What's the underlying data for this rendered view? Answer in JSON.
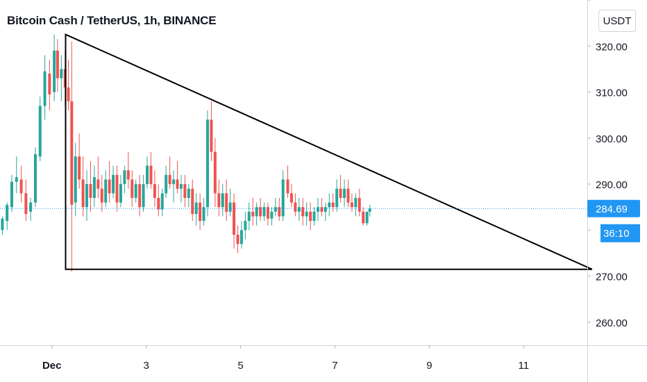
{
  "header": {
    "title": "Bitcoin Cash / TetherUS, 1h, BINANCE",
    "unit_button": "USDT"
  },
  "price_badge": {
    "price": "284.69",
    "countdown": "36:10"
  },
  "colors": {
    "up": "#26a69a",
    "down": "#ef5350",
    "badge": "#2196f3",
    "price_line": "#2196f3",
    "drawing": "#000000"
  },
  "chart_data": {
    "type": "candlestick",
    "title": "Bitcoin Cash / TetherUS, 1h, BINANCE",
    "y_ticks": [
      260,
      270,
      280,
      290,
      300,
      310,
      320,
      330
    ],
    "y_tick_labels": [
      "260.00",
      "270.00",
      "",
      "290.00",
      "300.00",
      "310.00",
      "320.00",
      ""
    ],
    "ylim": [
      255,
      330
    ],
    "x_ticks": [
      {
        "day": 1,
        "label": "Dec",
        "bold": true
      },
      {
        "day": 3,
        "label": "3"
      },
      {
        "day": 5,
        "label": "5"
      },
      {
        "day": 7,
        "label": "7"
      },
      {
        "day": 9,
        "label": "9"
      },
      {
        "day": 11,
        "label": "11"
      }
    ],
    "xlim": [
      -0.1,
      12.35
    ],
    "last_price": 284.69,
    "triangle": [
      {
        "day": 1.29,
        "price": 322.5
      },
      {
        "day": 12.45,
        "price": 271.5
      },
      {
        "day": 1.29,
        "price": 271.5
      }
    ],
    "candles": [
      [
        -0.05,
        280,
        283,
        279,
        282.5
      ],
      [
        0.05,
        282,
        286,
        280,
        285.5
      ],
      [
        0.15,
        285,
        292,
        284,
        290.5
      ],
      [
        0.25,
        290.5,
        296,
        288,
        291.5
      ],
      [
        0.35,
        291,
        294,
        286,
        288
      ],
      [
        0.45,
        288,
        291,
        282,
        283.5
      ],
      [
        0.55,
        284,
        287,
        282,
        286
      ],
      [
        0.65,
        286,
        298,
        285,
        296.5
      ],
      [
        0.75,
        296,
        309,
        295,
        307
      ],
      [
        0.85,
        307,
        318,
        304,
        314.5
      ],
      [
        0.95,
        314,
        317,
        306,
        309.5
      ],
      [
        1.05,
        310,
        322.5,
        308,
        319
      ],
      [
        1.12,
        319,
        321.5,
        310,
        313
      ],
      [
        1.2,
        313,
        318,
        308,
        315
      ],
      [
        1.28,
        315,
        319,
        307,
        311
      ],
      [
        1.35,
        311,
        317,
        306,
        308
      ],
      [
        1.42,
        308,
        321,
        271,
        285.5
      ],
      [
        1.5,
        286,
        299,
        283,
        296
      ],
      [
        1.58,
        296,
        301,
        289,
        291
      ],
      [
        1.66,
        291,
        296,
        283,
        285
      ],
      [
        1.74,
        285,
        293,
        282,
        290
      ],
      [
        1.82,
        290,
        295,
        284,
        287
      ],
      [
        1.9,
        287,
        294,
        285,
        291.5
      ],
      [
        1.98,
        291,
        296,
        287,
        289
      ],
      [
        2.06,
        289,
        292,
        284,
        286
      ],
      [
        2.14,
        286,
        293,
        285,
        291
      ],
      [
        2.22,
        291,
        295,
        286,
        288
      ],
      [
        2.3,
        288,
        294,
        287,
        292
      ],
      [
        2.38,
        292,
        294,
        284,
        286
      ],
      [
        2.46,
        286,
        292,
        285,
        290
      ],
      [
        2.54,
        290,
        294,
        288,
        293
      ],
      [
        2.62,
        293,
        297,
        289,
        291
      ],
      [
        2.7,
        291,
        293,
        285,
        287
      ],
      [
        2.78,
        287,
        291,
        286,
        290
      ],
      [
        2.86,
        290,
        292,
        283,
        285
      ],
      [
        2.94,
        285,
        292,
        284,
        290
      ],
      [
        3.02,
        290,
        296,
        289,
        294
      ],
      [
        3.1,
        294,
        297,
        289,
        290
      ],
      [
        3.18,
        290,
        293,
        285,
        287
      ],
      [
        3.26,
        287,
        290,
        283,
        284.5
      ],
      [
        3.34,
        284.5,
        289,
        283,
        288
      ],
      [
        3.42,
        288,
        294,
        287,
        292
      ],
      [
        3.5,
        292,
        296,
        289,
        290
      ],
      [
        3.58,
        290,
        293,
        286,
        291
      ],
      [
        3.66,
        291,
        295,
        288,
        289
      ],
      [
        3.74,
        289,
        292,
        286,
        290
      ],
      [
        3.82,
        290,
        292,
        285,
        287
      ],
      [
        3.9,
        287,
        290,
        285,
        289
      ],
      [
        3.98,
        289,
        291,
        282,
        283.5
      ],
      [
        4.06,
        283.5,
        288,
        281,
        286
      ],
      [
        4.14,
        286,
        288,
        280,
        282
      ],
      [
        4.22,
        282,
        287,
        281,
        285
      ],
      [
        4.3,
        285,
        306,
        283,
        304
      ],
      [
        4.38,
        304,
        308,
        295,
        297
      ],
      [
        4.46,
        297,
        300,
        285,
        288
      ],
      [
        4.54,
        288,
        291,
        283,
        285
      ],
      [
        4.62,
        285,
        290,
        283,
        288
      ],
      [
        4.7,
        288,
        291,
        282,
        284
      ],
      [
        4.78,
        284,
        289,
        283,
        286
      ],
      [
        4.86,
        286,
        288,
        276,
        279
      ],
      [
        4.94,
        279,
        281,
        275,
        277
      ],
      [
        5.02,
        277,
        282,
        276,
        280
      ],
      [
        5.1,
        280,
        284,
        278,
        282
      ],
      [
        5.18,
        282,
        286,
        280,
        284
      ],
      [
        5.26,
        284,
        287,
        281,
        283
      ],
      [
        5.34,
        283,
        286,
        281,
        285
      ],
      [
        5.42,
        285,
        287,
        282,
        283
      ],
      [
        5.5,
        283,
        286,
        282,
        285
      ],
      [
        5.58,
        285,
        286,
        281,
        282.5
      ],
      [
        5.66,
        282.5,
        285,
        281,
        284
      ],
      [
        5.74,
        284,
        287,
        283,
        285
      ],
      [
        5.82,
        285,
        287,
        282,
        283
      ],
      [
        5.9,
        283,
        293,
        282,
        291
      ],
      [
        6.0,
        291,
        294,
        287,
        288
      ],
      [
        6.08,
        288,
        290,
        285,
        286
      ],
      [
        6.16,
        286,
        288,
        283,
        284
      ],
      [
        6.24,
        284,
        287,
        282,
        285
      ],
      [
        6.32,
        285,
        287,
        281,
        283
      ],
      [
        6.4,
        283,
        286,
        281,
        284
      ],
      [
        6.48,
        284,
        286,
        280,
        282
      ],
      [
        6.56,
        282,
        285,
        281,
        284
      ],
      [
        6.64,
        284,
        287,
        282,
        285
      ],
      [
        6.72,
        285,
        287,
        283,
        284
      ],
      [
        6.8,
        284,
        286,
        282,
        285
      ],
      [
        6.88,
        285,
        288,
        283,
        286
      ],
      [
        6.96,
        286,
        288,
        284,
        285
      ],
      [
        7.04,
        285,
        291,
        284,
        289
      ],
      [
        7.12,
        289,
        292,
        286,
        287
      ],
      [
        7.2,
        287,
        291,
        285,
        289
      ],
      [
        7.28,
        289,
        291,
        285,
        286
      ],
      [
        7.36,
        286,
        288,
        284,
        285
      ],
      [
        7.44,
        285,
        288,
        283,
        287
      ],
      [
        7.52,
        287,
        289,
        283,
        284
      ],
      [
        7.6,
        284,
        285,
        281,
        281.5
      ],
      [
        7.68,
        281.5,
        284,
        281,
        284
      ],
      [
        7.74,
        284,
        285.5,
        283,
        284.69
      ]
    ]
  }
}
